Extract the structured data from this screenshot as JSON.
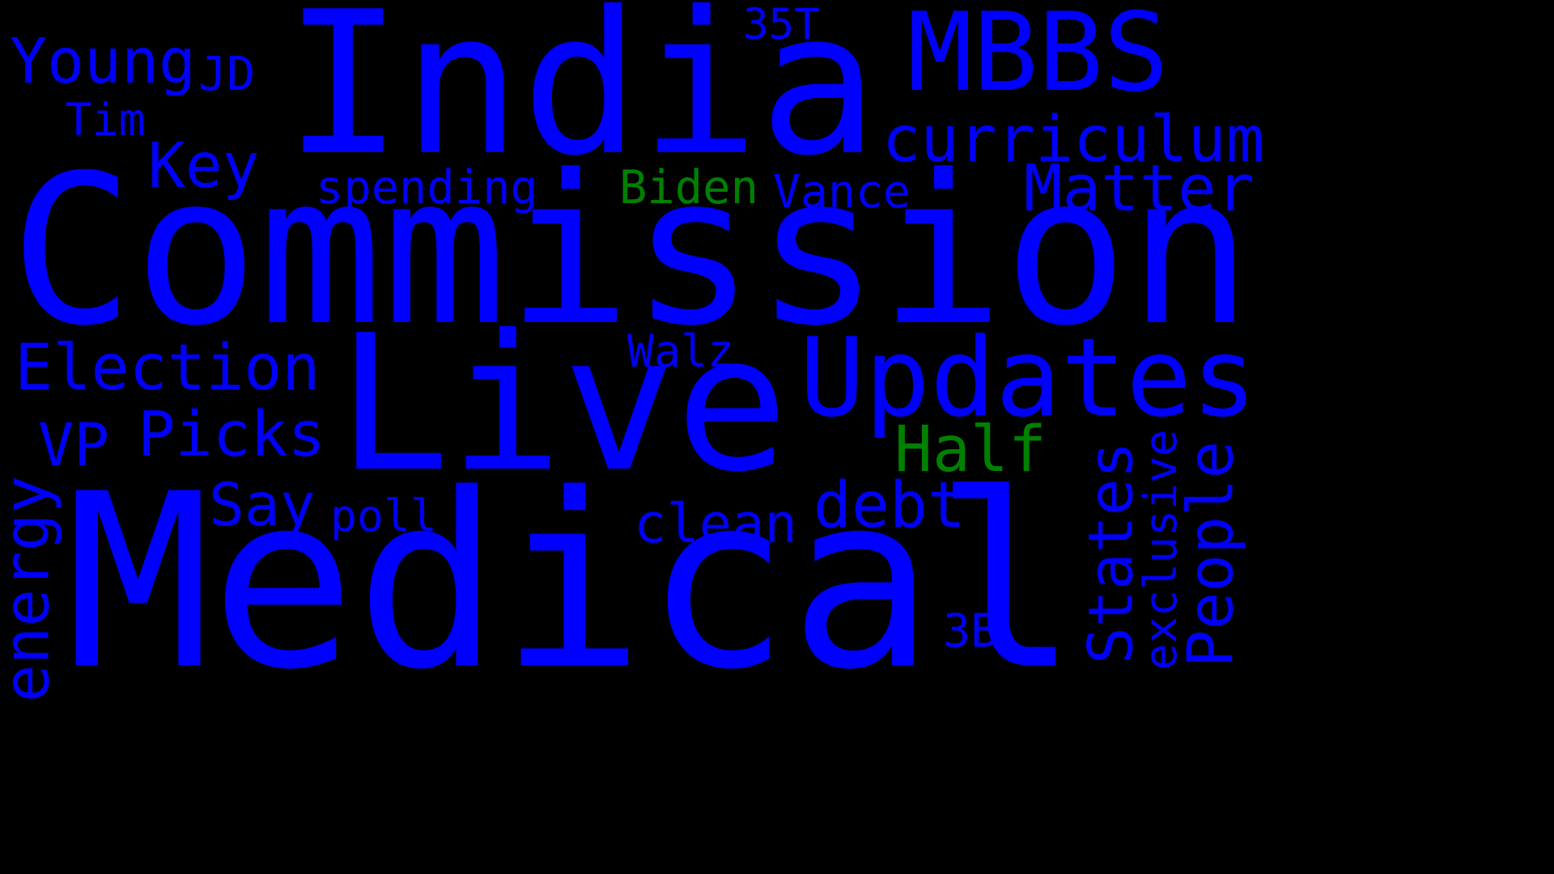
{
  "colors": {
    "background": "#000000",
    "blue": "#0000ff",
    "green": "#008000"
  },
  "words": [
    {
      "id": "commission",
      "text": "Commission",
      "color": "blue"
    },
    {
      "id": "medical",
      "text": "Medical",
      "color": "blue"
    },
    {
      "id": "india",
      "text": "India",
      "color": "blue"
    },
    {
      "id": "live",
      "text": "Live",
      "color": "blue"
    },
    {
      "id": "updates",
      "text": "Updates",
      "color": "blue"
    },
    {
      "id": "mbbs",
      "text": "MBBS",
      "color": "blue"
    },
    {
      "id": "curriculum",
      "text": "curriculum",
      "color": "blue"
    },
    {
      "id": "young",
      "text": "Young",
      "color": "blue"
    },
    {
      "id": "jd",
      "text": "JD",
      "color": "blue"
    },
    {
      "id": "tim",
      "text": "Tim",
      "color": "blue"
    },
    {
      "id": "35t",
      "text": "35T",
      "color": "blue"
    },
    {
      "id": "key",
      "text": "Key",
      "color": "blue"
    },
    {
      "id": "spending",
      "text": "spending",
      "color": "blue"
    },
    {
      "id": "biden",
      "text": "Biden",
      "color": "green"
    },
    {
      "id": "vance",
      "text": "Vance",
      "color": "blue"
    },
    {
      "id": "matter",
      "text": "Matter",
      "color": "blue"
    },
    {
      "id": "election",
      "text": "Election",
      "color": "blue"
    },
    {
      "id": "walz",
      "text": "Walz",
      "color": "blue"
    },
    {
      "id": "vp",
      "text": "VP",
      "color": "blue"
    },
    {
      "id": "picks",
      "text": "Picks",
      "color": "blue"
    },
    {
      "id": "half",
      "text": "Half",
      "color": "green"
    },
    {
      "id": "say",
      "text": "Say",
      "color": "blue"
    },
    {
      "id": "poll",
      "text": "poll",
      "color": "blue"
    },
    {
      "id": "clean",
      "text": "clean",
      "color": "blue"
    },
    {
      "id": "debt",
      "text": "debt",
      "color": "blue"
    },
    {
      "id": "energy",
      "text": "energy",
      "color": "blue"
    },
    {
      "id": "3b",
      "text": "3B",
      "color": "blue"
    },
    {
      "id": "states",
      "text": "States",
      "color": "blue"
    },
    {
      "id": "exclusive",
      "text": "exclusive",
      "color": "blue"
    },
    {
      "id": "people",
      "text": "People",
      "color": "blue"
    }
  ]
}
